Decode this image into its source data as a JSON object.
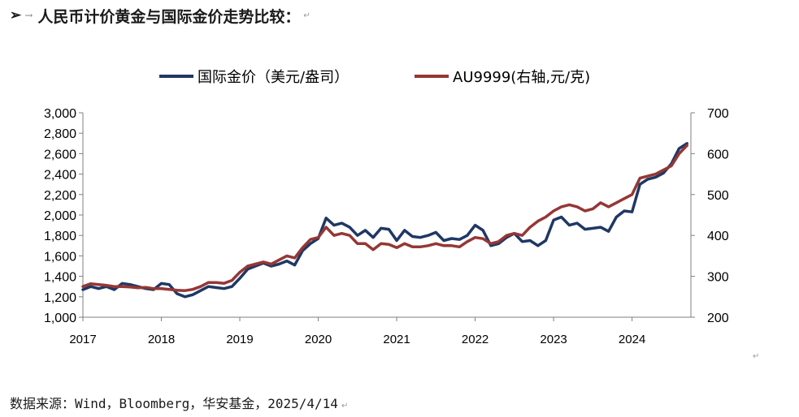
{
  "heading": {
    "bullet": "➢",
    "arrow": "→",
    "title": "人民币计价黄金与国际金价走势比较：",
    "para_mark": "↵"
  },
  "source": {
    "text": "数据来源：Wind，Bloomberg，华安基金，2025/4/14",
    "para_mark": "↵"
  },
  "colors": {
    "series_1": "#1f3864",
    "series_2": "#953735",
    "axis": "#7f7f7f"
  },
  "chart_data": {
    "type": "line",
    "title": "",
    "legend_position": "top",
    "grid": false,
    "x_axis": {
      "ticks": [
        "2017",
        "2018",
        "2019",
        "2020",
        "2021",
        "2022",
        "2023",
        "2024"
      ],
      "range": [
        2017.0,
        2024.75
      ]
    },
    "y_left": {
      "ylim": [
        1000,
        3000
      ],
      "ticks": [
        "1,000",
        "1,200",
        "1,400",
        "1,600",
        "1,800",
        "2,000",
        "2,200",
        "2,400",
        "2,600",
        "2,800",
        "3,000"
      ]
    },
    "y_right": {
      "ylim": [
        200,
        700
      ],
      "ticks": [
        "200",
        "300",
        "400",
        "500",
        "600",
        "700"
      ]
    },
    "series": [
      {
        "name": "国际金价（美元/盎司）",
        "axis": "left",
        "x": [
          2017.0,
          2017.1,
          2017.2,
          2017.3,
          2017.4,
          2017.5,
          2017.6,
          2017.7,
          2017.8,
          2017.9,
          2018.0,
          2018.1,
          2018.2,
          2018.3,
          2018.4,
          2018.5,
          2018.6,
          2018.7,
          2018.8,
          2018.9,
          2019.0,
          2019.1,
          2019.2,
          2019.3,
          2019.4,
          2019.5,
          2019.6,
          2019.7,
          2019.8,
          2019.9,
          2020.0,
          2020.1,
          2020.2,
          2020.3,
          2020.4,
          2020.5,
          2020.6,
          2020.7,
          2020.8,
          2020.9,
          2021.0,
          2021.1,
          2021.2,
          2021.3,
          2021.4,
          2021.5,
          2021.6,
          2021.7,
          2021.8,
          2021.9,
          2022.0,
          2022.1,
          2022.2,
          2022.3,
          2022.4,
          2022.5,
          2022.6,
          2022.7,
          2022.8,
          2022.9,
          2023.0,
          2023.1,
          2023.2,
          2023.3,
          2023.4,
          2023.5,
          2023.6,
          2023.7,
          2023.8,
          2023.9,
          2024.0,
          2024.1,
          2024.2,
          2024.3,
          2024.4,
          2024.5,
          2024.6,
          2024.7
        ],
        "values": [
          1270,
          1300,
          1280,
          1300,
          1270,
          1330,
          1320,
          1300,
          1280,
          1270,
          1330,
          1320,
          1230,
          1200,
          1220,
          1260,
          1300,
          1290,
          1280,
          1300,
          1380,
          1470,
          1500,
          1530,
          1500,
          1520,
          1550,
          1510,
          1650,
          1720,
          1770,
          1970,
          1900,
          1920,
          1880,
          1800,
          1850,
          1780,
          1870,
          1860,
          1750,
          1850,
          1790,
          1780,
          1800,
          1830,
          1750,
          1770,
          1760,
          1800,
          1900,
          1850,
          1700,
          1720,
          1780,
          1820,
          1740,
          1750,
          1700,
          1750,
          1950,
          1980,
          1900,
          1920,
          1860,
          1870,
          1880,
          1840,
          1980,
          2040,
          2030,
          2300,
          2350,
          2370,
          2410,
          2500,
          2650,
          2700
        ]
      },
      {
        "name": "AU9999(右轴,元/克)",
        "axis": "right",
        "x": [
          2017.0,
          2017.1,
          2017.2,
          2017.3,
          2017.4,
          2017.5,
          2017.6,
          2017.7,
          2017.8,
          2017.9,
          2018.0,
          2018.1,
          2018.2,
          2018.3,
          2018.4,
          2018.5,
          2018.6,
          2018.7,
          2018.8,
          2018.9,
          2019.0,
          2019.1,
          2019.2,
          2019.3,
          2019.4,
          2019.5,
          2019.6,
          2019.7,
          2019.8,
          2019.9,
          2020.0,
          2020.1,
          2020.2,
          2020.3,
          2020.4,
          2020.5,
          2020.6,
          2020.7,
          2020.8,
          2020.9,
          2021.0,
          2021.1,
          2021.2,
          2021.3,
          2021.4,
          2021.5,
          2021.6,
          2021.7,
          2021.8,
          2021.9,
          2022.0,
          2022.1,
          2022.2,
          2022.3,
          2022.4,
          2022.5,
          2022.6,
          2022.7,
          2022.8,
          2022.9,
          2023.0,
          2023.1,
          2023.2,
          2023.3,
          2023.4,
          2023.5,
          2023.6,
          2023.7,
          2023.8,
          2023.9,
          2024.0,
          2024.1,
          2024.2,
          2024.3,
          2024.4,
          2024.5,
          2024.6,
          2024.7
        ],
        "values": [
          275,
          282,
          280,
          278,
          275,
          275,
          274,
          272,
          273,
          270,
          270,
          268,
          266,
          265,
          268,
          275,
          285,
          285,
          283,
          290,
          310,
          325,
          330,
          335,
          330,
          340,
          350,
          345,
          370,
          390,
          395,
          420,
          400,
          405,
          400,
          380,
          380,
          365,
          380,
          378,
          370,
          380,
          372,
          372,
          375,
          380,
          375,
          375,
          372,
          385,
          395,
          392,
          380,
          385,
          400,
          405,
          400,
          420,
          435,
          445,
          460,
          470,
          475,
          470,
          460,
          465,
          480,
          470,
          480,
          490,
          500,
          540,
          545,
          550,
          560,
          570,
          600,
          620
        ]
      }
    ]
  }
}
